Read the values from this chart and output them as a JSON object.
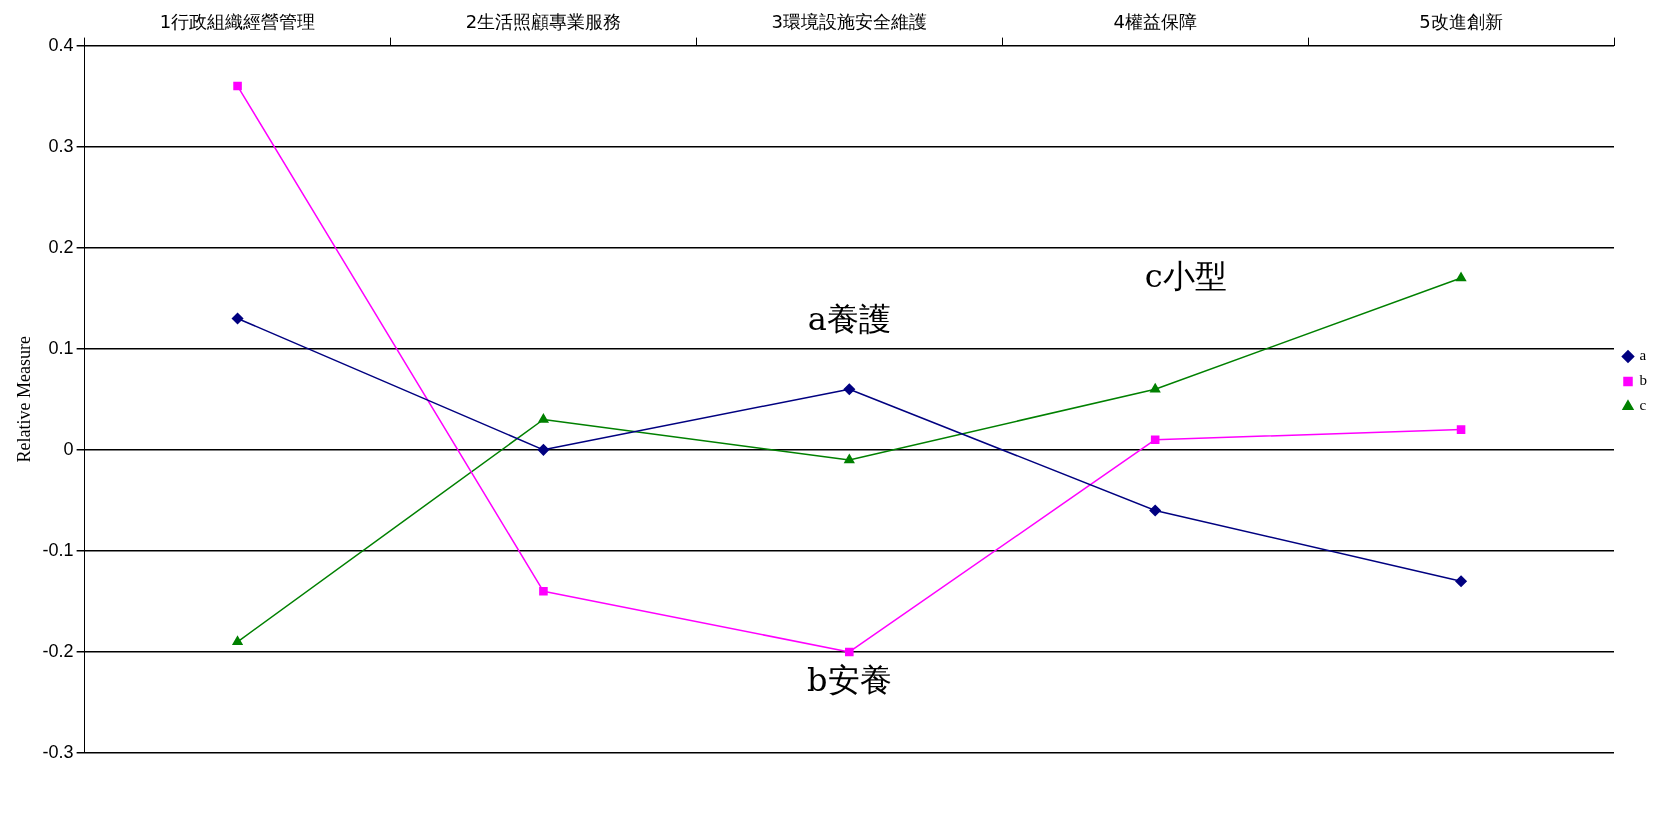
{
  "chart_data": {
    "type": "line",
    "categories": [
      "1行政組織經營管理",
      "2生活照顧專業服務",
      "3環境設施安全維護",
      "4權益保障",
      "5改進創新"
    ],
    "ylabel": "Relative Measure",
    "ylim": [
      -0.3,
      0.4
    ],
    "yticks": [
      {
        "value": -0.3,
        "label": "-0.3"
      },
      {
        "value": -0.2,
        "label": "-0.2"
      },
      {
        "value": -0.1,
        "label": "-0.1"
      },
      0,
      {
        "value": 0.1,
        "label": "0.1"
      },
      {
        "value": 0.2,
        "label": "0.2"
      },
      {
        "value": 0.3,
        "label": "0.3"
      },
      {
        "value": 0.4,
        "label": "0.4"
      }
    ],
    "grid": "y",
    "legend": "right",
    "line_style": "solid",
    "series": [
      {
        "name": "a",
        "color": "#000080",
        "marker": "diamond",
        "values": [
          0.13,
          0,
          0.06,
          -0.06,
          -0.13
        ]
      },
      {
        "name": "b",
        "color": "#ff00ff",
        "marker": "square",
        "values": [
          0.36,
          -0.14,
          -0.2,
          0.01,
          0.02
        ]
      },
      {
        "name": "c",
        "color": "#008000",
        "marker": "triangle",
        "values": [
          -0.19,
          0.03,
          -0.01,
          0.06,
          0.17
        ]
      }
    ],
    "annotations": [
      "a養護",
      "b安養",
      "c小型"
    ]
  }
}
